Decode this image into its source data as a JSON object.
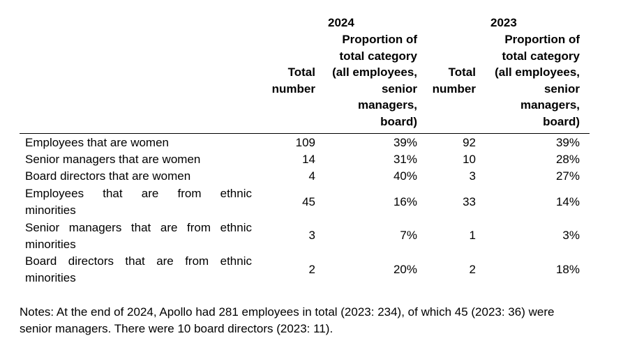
{
  "headers": {
    "year_2024": "2024",
    "year_2023": "2023",
    "total_col_2024": [
      "Total",
      "number"
    ],
    "prop_col_2024": [
      "Proportion of",
      "total category",
      "(all employees,",
      "senior",
      "managers,",
      "board)"
    ],
    "total_col_2023": [
      "Total",
      "number"
    ],
    "prop_col_2023": [
      "Proportion of",
      "total category",
      "(all employees,",
      "senior",
      "managers,",
      "board)"
    ]
  },
  "rows": [
    {
      "label": [
        "Employees that are women"
      ],
      "total_2024": "109",
      "prop_2024": "39%",
      "total_2023": "92",
      "prop_2023": "39%"
    },
    {
      "label": [
        "Senior managers that are women"
      ],
      "total_2024": "14",
      "prop_2024": "31%",
      "total_2023": "10",
      "prop_2023": "28%"
    },
    {
      "label": [
        "Board directors that are women"
      ],
      "total_2024": "4",
      "prop_2024": "40%",
      "total_2023": "3",
      "prop_2023": "27%"
    },
    {
      "label": [
        "Employees that are from ethnic",
        "minorities"
      ],
      "total_2024": "45",
      "prop_2024": "16%",
      "total_2023": "33",
      "prop_2023": "14%"
    },
    {
      "label": [
        "Senior managers that are from ethnic",
        "minorities"
      ],
      "total_2024": "3",
      "prop_2024": "7%",
      "total_2023": "1",
      "prop_2023": "3%"
    },
    {
      "label": [
        "Board directors that are from ethnic",
        "minorities"
      ],
      "total_2024": "2",
      "prop_2024": "20%",
      "total_2023": "2",
      "prop_2023": "18%"
    }
  ],
  "notes": [
    "Notes: At the end of 2024, Apollo had 281 employees in total (2023: 234), of which 45 (2023: 36) were",
    "senior managers. There were 10 board directors (2023: 11)."
  ]
}
